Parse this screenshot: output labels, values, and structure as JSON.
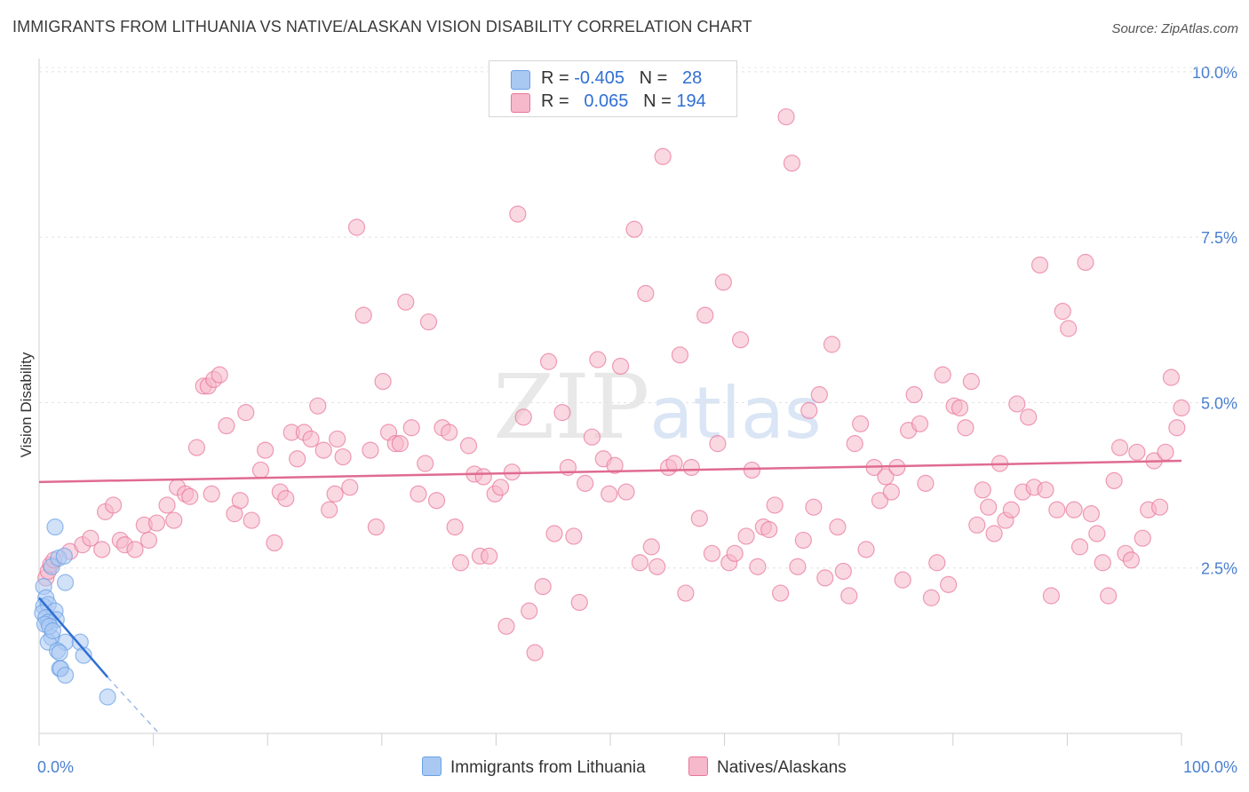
{
  "header": {
    "title": "IMMIGRANTS FROM LITHUANIA VS NATIVE/ALASKAN VISION DISABILITY CORRELATION CHART",
    "source": "Source: ZipAtlas.com"
  },
  "watermark": {
    "zip": "ZIP",
    "atlas": "atlas"
  },
  "legend": {
    "rows": [
      {
        "r_label": "R = ",
        "r_value": "-0.405",
        "n_label": "N = ",
        "n_value": "28",
        "color": "#a9c8f2"
      },
      {
        "r_label": "R = ",
        "r_value": "0.065",
        "n_label": "N = ",
        "n_value": "194",
        "color": "#f6b8cb"
      }
    ]
  },
  "bottom_legend": [
    {
      "label": "Immigrants from Lithuania",
      "color": "#a9c8f2"
    },
    {
      "label": "Natives/Alaskans",
      "color": "#f6b8cb"
    }
  ],
  "chart_data": {
    "type": "scatter",
    "title": "IMMIGRANTS FROM LITHUANIA VS NATIVE/ALASKAN VISION DISABILITY CORRELATION CHART",
    "xlabel": "",
    "ylabel": "Vision Disability",
    "xlim": [
      0,
      100
    ],
    "ylim": [
      0,
      10.2
    ],
    "x_tick_labels": {
      "left": "0.0%",
      "right": "100.0%"
    },
    "y_ticks": [
      {
        "value": 2.5,
        "label": "2.5%"
      },
      {
        "value": 5.0,
        "label": "5.0%"
      },
      {
        "value": 7.5,
        "label": "7.5%"
      },
      {
        "value": 10.0,
        "label": "10.0%"
      }
    ],
    "grid": true,
    "legend_position": "top-center",
    "series": [
      {
        "name": "Immigrants from Lithuania",
        "color": "#6aa0e6",
        "fill": "#a9c8f2",
        "r": -0.405,
        "n": 28,
        "trend": {
          "x0": 0,
          "y0": 2.05,
          "x1": 6,
          "y1": 0.85,
          "dashed_to_x": 10.5,
          "dashed_to_y": 0.0
        },
        "points": [
          [
            1.4,
            3.12
          ],
          [
            0.4,
            2.22
          ],
          [
            2.3,
            2.28
          ],
          [
            1.1,
            2.52
          ],
          [
            1.7,
            2.65
          ],
          [
            2.2,
            2.68
          ],
          [
            0.6,
            2.05
          ],
          [
            0.4,
            1.92
          ],
          [
            0.8,
            1.95
          ],
          [
            1.4,
            1.85
          ],
          [
            0.3,
            1.82
          ],
          [
            0.6,
            1.75
          ],
          [
            1.5,
            1.72
          ],
          [
            0.8,
            1.68
          ],
          [
            0.5,
            1.65
          ],
          [
            1.1,
            1.45
          ],
          [
            0.8,
            1.38
          ],
          [
            2.3,
            1.38
          ],
          [
            3.6,
            1.38
          ],
          [
            1.6,
            1.25
          ],
          [
            1.8,
            1.22
          ],
          [
            3.9,
            1.18
          ],
          [
            1.8,
            0.98
          ],
          [
            1.9,
            0.98
          ],
          [
            2.3,
            0.88
          ],
          [
            6.0,
            0.55
          ],
          [
            0.9,
            1.62
          ],
          [
            1.2,
            1.55
          ]
        ]
      },
      {
        "name": "Natives/Alaskans",
        "color": "#e8759a",
        "fill": "#f6b8cb",
        "r": 0.065,
        "n": 194,
        "trend": {
          "x0": 0,
          "y0": 3.8,
          "x1": 100,
          "y1": 4.12
        },
        "points": [
          [
            0.6,
            2.35
          ],
          [
            0.8,
            2.45
          ],
          [
            1.0,
            2.55
          ],
          [
            1.3,
            2.62
          ],
          [
            2.7,
            2.75
          ],
          [
            3.8,
            2.85
          ],
          [
            4.5,
            2.95
          ],
          [
            5.5,
            2.78
          ],
          [
            5.8,
            3.35
          ],
          [
            6.5,
            3.45
          ],
          [
            7.1,
            2.92
          ],
          [
            7.5,
            2.85
          ],
          [
            8.4,
            2.78
          ],
          [
            9.2,
            3.15
          ],
          [
            9.6,
            2.92
          ],
          [
            10.3,
            3.18
          ],
          [
            11.2,
            3.45
          ],
          [
            11.8,
            3.22
          ],
          [
            12.1,
            3.72
          ],
          [
            12.8,
            3.62
          ],
          [
            13.2,
            3.58
          ],
          [
            13.8,
            4.32
          ],
          [
            14.4,
            5.25
          ],
          [
            14.8,
            5.25
          ],
          [
            15.3,
            5.35
          ],
          [
            15.8,
            5.42
          ],
          [
            16.4,
            4.65
          ],
          [
            17.1,
            3.32
          ],
          [
            17.6,
            3.52
          ],
          [
            18.1,
            4.85
          ],
          [
            18.6,
            3.22
          ],
          [
            19.4,
            3.98
          ],
          [
            19.8,
            4.28
          ],
          [
            20.6,
            2.88
          ],
          [
            21.1,
            3.65
          ],
          [
            21.6,
            3.55
          ],
          [
            22.1,
            4.55
          ],
          [
            22.6,
            4.15
          ],
          [
            23.2,
            4.55
          ],
          [
            23.8,
            4.45
          ],
          [
            24.4,
            4.95
          ],
          [
            24.9,
            4.28
          ],
          [
            25.4,
            3.38
          ],
          [
            26.1,
            4.45
          ],
          [
            26.6,
            4.18
          ],
          [
            27.2,
            3.72
          ],
          [
            27.8,
            7.65
          ],
          [
            28.4,
            6.32
          ],
          [
            29.0,
            4.28
          ],
          [
            29.5,
            3.12
          ],
          [
            30.1,
            5.32
          ],
          [
            30.6,
            4.55
          ],
          [
            31.2,
            4.38
          ],
          [
            31.6,
            4.38
          ],
          [
            32.1,
            6.52
          ],
          [
            32.6,
            4.62
          ],
          [
            33.2,
            3.62
          ],
          [
            33.8,
            4.08
          ],
          [
            34.1,
            6.22
          ],
          [
            34.8,
            3.52
          ],
          [
            35.3,
            4.62
          ],
          [
            35.9,
            4.55
          ],
          [
            36.4,
            3.12
          ],
          [
            36.9,
            2.58
          ],
          [
            37.6,
            4.35
          ],
          [
            38.1,
            3.92
          ],
          [
            38.6,
            2.68
          ],
          [
            38.9,
            3.88
          ],
          [
            39.4,
            2.68
          ],
          [
            39.9,
            3.62
          ],
          [
            40.4,
            3.72
          ],
          [
            40.9,
            1.62
          ],
          [
            41.4,
            3.95
          ],
          [
            41.9,
            7.85
          ],
          [
            42.4,
            4.78
          ],
          [
            42.9,
            1.85
          ],
          [
            43.4,
            1.22
          ],
          [
            44.1,
            2.22
          ],
          [
            44.6,
            5.62
          ],
          [
            45.1,
            3.02
          ],
          [
            45.8,
            4.85
          ],
          [
            46.3,
            4.02
          ],
          [
            46.8,
            2.98
          ],
          [
            47.3,
            1.98
          ],
          [
            47.8,
            3.78
          ],
          [
            48.4,
            4.48
          ],
          [
            48.9,
            5.65
          ],
          [
            49.4,
            4.15
          ],
          [
            49.9,
            3.62
          ],
          [
            50.4,
            4.05
          ],
          [
            50.9,
            5.55
          ],
          [
            51.4,
            3.65
          ],
          [
            52.1,
            7.62
          ],
          [
            52.6,
            2.58
          ],
          [
            53.1,
            6.65
          ],
          [
            53.6,
            2.82
          ],
          [
            54.1,
            2.52
          ],
          [
            54.6,
            8.72
          ],
          [
            55.1,
            4.02
          ],
          [
            55.6,
            4.08
          ],
          [
            56.1,
            5.72
          ],
          [
            56.6,
            2.12
          ],
          [
            57.1,
            4.02
          ],
          [
            57.8,
            3.25
          ],
          [
            58.3,
            6.32
          ],
          [
            58.9,
            2.72
          ],
          [
            59.4,
            4.38
          ],
          [
            59.9,
            6.82
          ],
          [
            60.4,
            2.58
          ],
          [
            60.9,
            2.72
          ],
          [
            61.4,
            5.95
          ],
          [
            61.9,
            2.98
          ],
          [
            62.4,
            3.98
          ],
          [
            62.9,
            2.52
          ],
          [
            63.4,
            3.12
          ],
          [
            63.9,
            3.08
          ],
          [
            64.4,
            3.45
          ],
          [
            64.9,
            2.12
          ],
          [
            65.4,
            9.32
          ],
          [
            65.9,
            8.62
          ],
          [
            66.4,
            2.52
          ],
          [
            66.9,
            2.92
          ],
          [
            67.4,
            4.88
          ],
          [
            67.8,
            3.42
          ],
          [
            68.3,
            5.12
          ],
          [
            68.8,
            2.35
          ],
          [
            69.4,
            5.88
          ],
          [
            69.9,
            3.12
          ],
          [
            70.4,
            2.45
          ],
          [
            70.9,
            2.08
          ],
          [
            71.4,
            4.38
          ],
          [
            71.9,
            4.68
          ],
          [
            72.4,
            2.78
          ],
          [
            73.1,
            4.02
          ],
          [
            73.6,
            3.52
          ],
          [
            74.1,
            3.88
          ],
          [
            74.6,
            3.65
          ],
          [
            75.1,
            4.02
          ],
          [
            75.6,
            2.32
          ],
          [
            76.1,
            4.58
          ],
          [
            76.6,
            5.12
          ],
          [
            77.1,
            4.68
          ],
          [
            77.6,
            3.78
          ],
          [
            78.1,
            2.05
          ],
          [
            78.6,
            2.58
          ],
          [
            79.1,
            5.42
          ],
          [
            79.6,
            2.25
          ],
          [
            80.1,
            4.95
          ],
          [
            80.6,
            4.92
          ],
          [
            81.1,
            4.62
          ],
          [
            81.6,
            5.32
          ],
          [
            82.1,
            3.15
          ],
          [
            82.6,
            3.68
          ],
          [
            83.1,
            3.42
          ],
          [
            83.6,
            3.02
          ],
          [
            84.1,
            4.08
          ],
          [
            84.6,
            3.22
          ],
          [
            85.1,
            3.38
          ],
          [
            85.6,
            4.98
          ],
          [
            86.1,
            3.65
          ],
          [
            86.6,
            4.78
          ],
          [
            87.1,
            3.72
          ],
          [
            87.6,
            7.08
          ],
          [
            88.1,
            3.68
          ],
          [
            88.6,
            2.08
          ],
          [
            89.1,
            3.38
          ],
          [
            89.6,
            6.38
          ],
          [
            90.1,
            6.12
          ],
          [
            90.6,
            3.38
          ],
          [
            91.1,
            2.82
          ],
          [
            91.6,
            7.12
          ],
          [
            92.1,
            3.32
          ],
          [
            92.6,
            3.02
          ],
          [
            93.1,
            2.58
          ],
          [
            93.6,
            2.08
          ],
          [
            94.1,
            3.82
          ],
          [
            94.6,
            4.32
          ],
          [
            95.1,
            2.72
          ],
          [
            95.6,
            2.62
          ],
          [
            96.1,
            4.25
          ],
          [
            96.6,
            2.95
          ],
          [
            97.1,
            3.38
          ],
          [
            97.6,
            4.12
          ],
          [
            98.1,
            3.42
          ],
          [
            98.6,
            4.25
          ],
          [
            99.1,
            5.38
          ],
          [
            99.6,
            4.62
          ],
          [
            100.0,
            4.92
          ],
          [
            25.9,
            3.62
          ],
          [
            15.1,
            3.62
          ]
        ]
      }
    ]
  }
}
